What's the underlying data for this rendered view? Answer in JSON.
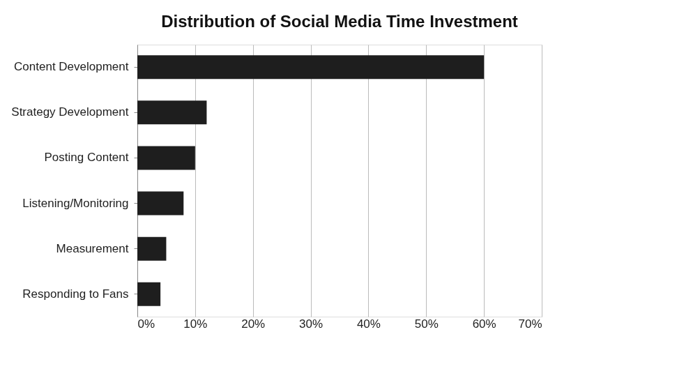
{
  "chart_data": {
    "type": "bar",
    "orientation": "horizontal",
    "title": "Distribution of Social Media Time Investment",
    "categories": [
      "Content Development",
      "Strategy Development",
      "Posting Content",
      "Listening/Monitoring",
      "Measurement",
      "Responding to Fans"
    ],
    "values": [
      60,
      12,
      10,
      8,
      5,
      4
    ],
    "color": "#1e1e1e",
    "xlim": [
      0,
      70
    ],
    "xticks": [
      {
        "value": 0,
        "label": "0%"
      },
      {
        "value": 10,
        "label": "10%"
      },
      {
        "value": 20,
        "label": "20%"
      },
      {
        "value": 30,
        "label": "30%"
      },
      {
        "value": 40,
        "label": "40%"
      },
      {
        "value": 50,
        "label": "50%"
      },
      {
        "value": 60,
        "label": "60%"
      },
      {
        "value": 70,
        "label": "70%"
      }
    ],
    "grid": "x"
  }
}
